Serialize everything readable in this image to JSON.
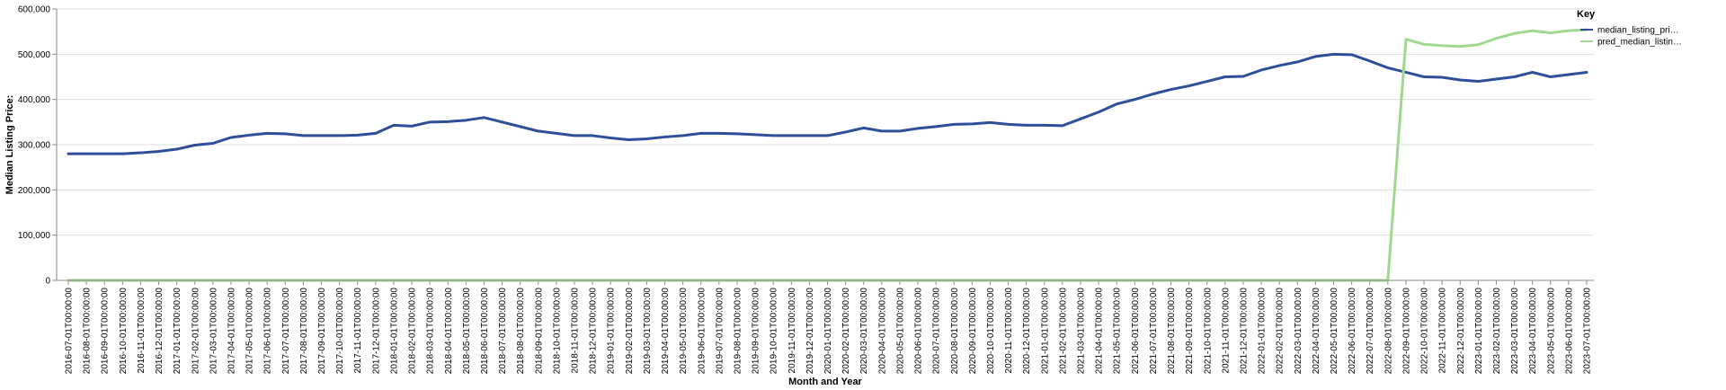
{
  "chart_data": {
    "type": "line",
    "xlabel": "Month and Year",
    "ylabel": "Median Listing Price:",
    "ylim": [
      0,
      600000
    ],
    "yticks": [
      "0",
      "100,000",
      "200,000",
      "300,000",
      "400,000",
      "500,000",
      "600,000"
    ],
    "ytick_values": [
      0,
      100000,
      200000,
      300000,
      400000,
      500000,
      600000
    ],
    "grid": true,
    "legend": {
      "title": "Key",
      "placement": "right",
      "entries": [
        "median_listing_pri…",
        "pred_median_listin…"
      ]
    },
    "categories": [
      "2016-07-01T00:00:00",
      "2016-08-01T00:00:00",
      "2016-09-01T00:00:00",
      "2016-10-01T00:00:00",
      "2016-11-01T00:00:00",
      "2016-12-01T00:00:00",
      "2017-01-01T00:00:00",
      "2017-02-01T00:00:00",
      "2017-03-01T00:00:00",
      "2017-04-01T00:00:00",
      "2017-05-01T00:00:00",
      "2017-06-01T00:00:00",
      "2017-07-01T00:00:00",
      "2017-08-01T00:00:00",
      "2017-09-01T00:00:00",
      "2017-10-01T00:00:00",
      "2017-11-01T00:00:00",
      "2017-12-01T00:00:00",
      "2018-01-01T00:00:00",
      "2018-02-01T00:00:00",
      "2018-03-01T00:00:00",
      "2018-04-01T00:00:00",
      "2018-05-01T00:00:00",
      "2018-06-01T00:00:00",
      "2018-07-01T00:00:00",
      "2018-08-01T00:00:00",
      "2018-09-01T00:00:00",
      "2018-10-01T00:00:00",
      "2018-11-01T00:00:00",
      "2018-12-01T00:00:00",
      "2019-01-01T00:00:00",
      "2019-02-01T00:00:00",
      "2019-03-01T00:00:00",
      "2019-04-01T00:00:00",
      "2019-05-01T00:00:00",
      "2019-06-01T00:00:00",
      "2019-07-01T00:00:00",
      "2019-08-01T00:00:00",
      "2019-09-01T00:00:00",
      "2019-10-01T00:00:00",
      "2019-11-01T00:00:00",
      "2019-12-01T00:00:00",
      "2020-01-01T00:00:00",
      "2020-02-01T00:00:00",
      "2020-03-01T00:00:00",
      "2020-04-01T00:00:00",
      "2020-05-01T00:00:00",
      "2020-06-01T00:00:00",
      "2020-07-01T00:00:00",
      "2020-08-01T00:00:00",
      "2020-09-01T00:00:00",
      "2020-10-01T00:00:00",
      "2020-11-01T00:00:00",
      "2020-12-01T00:00:00",
      "2021-01-01T00:00:00",
      "2021-02-01T00:00:00",
      "2021-03-01T00:00:00",
      "2021-04-01T00:00:00",
      "2021-05-01T00:00:00",
      "2021-06-01T00:00:00",
      "2021-07-01T00:00:00",
      "2021-08-01T00:00:00",
      "2021-09-01T00:00:00",
      "2021-10-01T00:00:00",
      "2021-11-01T00:00:00",
      "2021-12-01T00:00:00",
      "2022-01-01T00:00:00",
      "2022-02-01T00:00:00",
      "2022-03-01T00:00:00",
      "2022-04-01T00:00:00",
      "2022-05-01T00:00:00",
      "2022-06-01T00:00:00",
      "2022-07-01T00:00:00",
      "2022-08-01T00:00:00",
      "2022-09-01T00:00:00",
      "2022-10-01T00:00:00",
      "2022-11-01T00:00:00",
      "2022-12-01T00:00:00",
      "2023-01-01T00:00:00",
      "2023-02-01T00:00:00",
      "2023-03-01T00:00:00",
      "2023-04-01T00:00:00",
      "2023-05-01T00:00:00",
      "2023-06-01T00:00:00",
      "2023-07-01T00:00:00"
    ],
    "series": [
      {
        "name": "median_listing_pri…",
        "color": "#2d4f9a",
        "values": [
          280000,
          280000,
          280000,
          280000,
          282000,
          285000,
          290000,
          299000,
          303000,
          316000,
          321000,
          325000,
          324000,
          320000,
          320000,
          320000,
          321000,
          325000,
          343000,
          341000,
          350000,
          351000,
          354000,
          360000,
          350000,
          340000,
          330000,
          325000,
          320000,
          320000,
          315000,
          311000,
          313000,
          317000,
          320000,
          325000,
          325000,
          324000,
          322000,
          320000,
          320000,
          320000,
          320000,
          328000,
          337000,
          330000,
          330000,
          336000,
          340000,
          345000,
          346000,
          349000,
          345000,
          343000,
          343000,
          342000,
          357000,
          372000,
          390000,
          400000,
          412000,
          422000,
          430000,
          440000,
          450000,
          451000,
          465000,
          475000,
          483000,
          495000,
          500000,
          499000,
          485000,
          470000,
          460000,
          450000,
          449000,
          443000,
          440000,
          445000,
          450000,
          460000,
          450000,
          455000,
          460000
        ]
      },
      {
        "name": "pred_median_listin…",
        "color": "#9fd98f",
        "values": [
          0,
          0,
          0,
          0,
          0,
          0,
          0,
          0,
          0,
          0,
          0,
          0,
          0,
          0,
          0,
          0,
          0,
          0,
          0,
          0,
          0,
          0,
          0,
          0,
          0,
          0,
          0,
          0,
          0,
          0,
          0,
          0,
          0,
          0,
          0,
          0,
          0,
          0,
          0,
          0,
          0,
          0,
          0,
          0,
          0,
          0,
          0,
          0,
          0,
          0,
          0,
          0,
          0,
          0,
          0,
          0,
          0,
          0,
          0,
          0,
          0,
          0,
          0,
          0,
          0,
          0,
          0,
          0,
          0,
          0,
          0,
          0,
          0,
          0,
          533000,
          522000,
          519000,
          517000,
          521000,
          535000,
          546000,
          552000,
          547000,
          552000,
          554000
        ]
      }
    ]
  }
}
